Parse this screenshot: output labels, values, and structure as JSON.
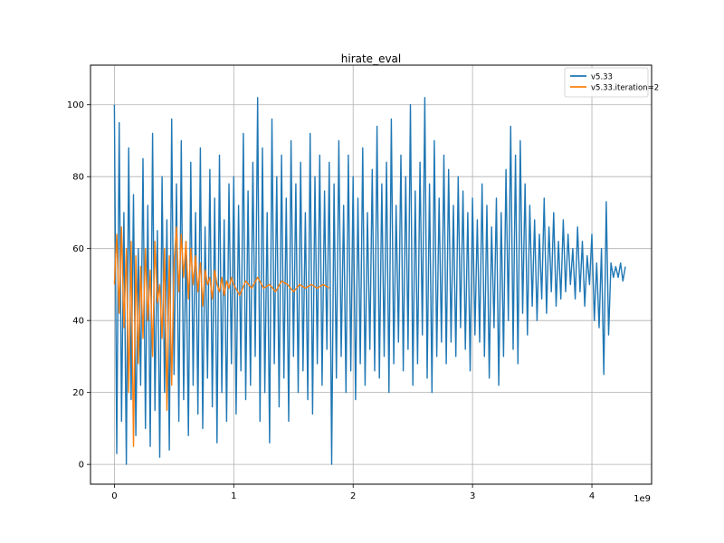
{
  "chart_data": {
    "type": "line",
    "title": "hirate_eval",
    "xlabel": "",
    "ylabel": "",
    "x_offset_label": "1e9",
    "xlim": [
      -0.2,
      4.5
    ],
    "ylim": [
      -5.5,
      111
    ],
    "x_ticks": [
      0,
      1,
      2,
      3,
      4
    ],
    "y_ticks": [
      0,
      20,
      40,
      60,
      80,
      100
    ],
    "grid": true,
    "legend_position": "upper right",
    "series": [
      {
        "name": "v5.33",
        "color": "#1f77b4",
        "x": [
          0.0,
          0.02,
          0.04,
          0.06,
          0.08,
          0.1,
          0.12,
          0.14,
          0.16,
          0.18,
          0.2,
          0.22,
          0.24,
          0.26,
          0.28,
          0.3,
          0.32,
          0.34,
          0.36,
          0.38,
          0.4,
          0.42,
          0.44,
          0.46,
          0.48,
          0.5,
          0.52,
          0.54,
          0.56,
          0.58,
          0.6,
          0.62,
          0.64,
          0.66,
          0.68,
          0.7,
          0.72,
          0.74,
          0.76,
          0.78,
          0.8,
          0.82,
          0.84,
          0.86,
          0.88,
          0.9,
          0.92,
          0.94,
          0.96,
          0.98,
          1.0,
          1.02,
          1.04,
          1.06,
          1.08,
          1.1,
          1.12,
          1.14,
          1.16,
          1.18,
          1.2,
          1.22,
          1.24,
          1.26,
          1.28,
          1.3,
          1.32,
          1.34,
          1.36,
          1.38,
          1.4,
          1.42,
          1.44,
          1.46,
          1.48,
          1.5,
          1.52,
          1.54,
          1.56,
          1.58,
          1.6,
          1.62,
          1.64,
          1.66,
          1.68,
          1.7,
          1.72,
          1.74,
          1.76,
          1.78,
          1.8,
          1.82,
          1.84,
          1.86,
          1.88,
          1.9,
          1.92,
          1.94,
          1.96,
          1.98,
          2.0,
          2.02,
          2.04,
          2.06,
          2.08,
          2.1,
          2.12,
          2.14,
          2.16,
          2.18,
          2.2,
          2.22,
          2.24,
          2.26,
          2.28,
          2.3,
          2.32,
          2.34,
          2.36,
          2.38,
          2.4,
          2.42,
          2.44,
          2.46,
          2.48,
          2.5,
          2.52,
          2.54,
          2.56,
          2.58,
          2.6,
          2.62,
          2.64,
          2.66,
          2.68,
          2.7,
          2.72,
          2.74,
          2.76,
          2.78,
          2.8,
          2.82,
          2.84,
          2.86,
          2.88,
          2.9,
          2.92,
          2.94,
          2.96,
          2.98,
          3.0,
          3.02,
          3.04,
          3.06,
          3.08,
          3.1,
          3.12,
          3.14,
          3.16,
          3.18,
          3.2,
          3.22,
          3.24,
          3.26,
          3.28,
          3.3,
          3.32,
          3.34,
          3.36,
          3.38,
          3.4,
          3.42,
          3.44,
          3.46,
          3.48,
          3.5,
          3.52,
          3.54,
          3.56,
          3.58,
          3.6,
          3.62,
          3.64,
          3.66,
          3.68,
          3.7,
          3.72,
          3.74,
          3.76,
          3.78,
          3.8,
          3.82,
          3.84,
          3.86,
          3.88,
          3.9,
          3.92,
          3.94,
          3.96,
          3.98,
          4.0,
          4.02,
          4.04,
          4.06,
          4.08,
          4.1,
          4.12,
          4.14,
          4.16,
          4.18,
          4.2,
          4.22,
          4.24,
          4.26,
          4.28
        ],
        "y": [
          100,
          3,
          95,
          12,
          70,
          0,
          88,
          18,
          75,
          8,
          60,
          22,
          85,
          10,
          72,
          5,
          92,
          15,
          65,
          2,
          80,
          20,
          68,
          4,
          96,
          25,
          78,
          12,
          90,
          18,
          62,
          8,
          84,
          22,
          70,
          14,
          88,
          10,
          66,
          24,
          82,
          16,
          74,
          6,
          86,
          20,
          68,
          12,
          78,
          28,
          80,
          14,
          72,
          26,
          92,
          18,
          76,
          22,
          84,
          30,
          102,
          12,
          88,
          20,
          70,
          6,
          96,
          28,
          80,
          16,
          86,
          24,
          74,
          12,
          90,
          30,
          78,
          20,
          84,
          26,
          70,
          18,
          92,
          14,
          80,
          28,
          86,
          22,
          76,
          32,
          84,
          0,
          78,
          24,
          90,
          30,
          72,
          20,
          86,
          26,
          80,
          18,
          74,
          28,
          88,
          22,
          70,
          32,
          82,
          26,
          94,
          24,
          78,
          30,
          84,
          20,
          96,
          28,
          72,
          34,
          86,
          26,
          80,
          32,
          100,
          22,
          76,
          28,
          84,
          36,
          102,
          24,
          78,
          20,
          90,
          30,
          74,
          34,
          86,
          28,
          82,
          34,
          72,
          30,
          80,
          38,
          76,
          32,
          70,
          26,
          74,
          36,
          68,
          34,
          78,
          30,
          72,
          24,
          66,
          38,
          74,
          22,
          70,
          30,
          82,
          40,
          94,
          32,
          86,
          28,
          90,
          42,
          78,
          36,
          72,
          44,
          68,
          40,
          64,
          46,
          74,
          42,
          66,
          48,
          70,
          44,
          62,
          46,
          68,
          48,
          64,
          50,
          60,
          46,
          66,
          48,
          62,
          44,
          58,
          50,
          64,
          40,
          56,
          38,
          60,
          25,
          73,
          36,
          56,
          52,
          55,
          52,
          56,
          51,
          55
        ]
      },
      {
        "name": "v5.33.iteration=2",
        "color": "#ff7f0e",
        "x": [
          0.0,
          0.02,
          0.04,
          0.06,
          0.08,
          0.1,
          0.12,
          0.14,
          0.16,
          0.18,
          0.2,
          0.22,
          0.24,
          0.26,
          0.28,
          0.3,
          0.32,
          0.34,
          0.36,
          0.38,
          0.4,
          0.42,
          0.44,
          0.46,
          0.48,
          0.5,
          0.52,
          0.54,
          0.56,
          0.58,
          0.6,
          0.62,
          0.64,
          0.66,
          0.68,
          0.7,
          0.72,
          0.74,
          0.76,
          0.78,
          0.8,
          0.82,
          0.84,
          0.86,
          0.88,
          0.9,
          0.92,
          0.94,
          0.96,
          0.98,
          1.0,
          1.05,
          1.1,
          1.15,
          1.2,
          1.25,
          1.3,
          1.35,
          1.4,
          1.45,
          1.5,
          1.55,
          1.6,
          1.65,
          1.7,
          1.75,
          1.8
        ],
        "y": [
          50,
          64,
          42,
          66,
          38,
          60,
          20,
          62,
          5,
          58,
          28,
          55,
          35,
          60,
          40,
          54,
          30,
          62,
          45,
          50,
          35,
          60,
          15,
          58,
          22,
          56,
          66,
          48,
          64,
          52,
          62,
          46,
          60,
          50,
          58,
          48,
          56,
          44,
          54,
          50,
          52,
          46,
          54,
          50,
          48,
          52,
          47,
          51,
          49,
          52,
          50,
          47,
          51,
          49,
          52,
          49,
          50,
          48,
          51,
          50,
          48,
          50,
          49,
          50,
          49,
          50,
          49
        ]
      }
    ]
  }
}
